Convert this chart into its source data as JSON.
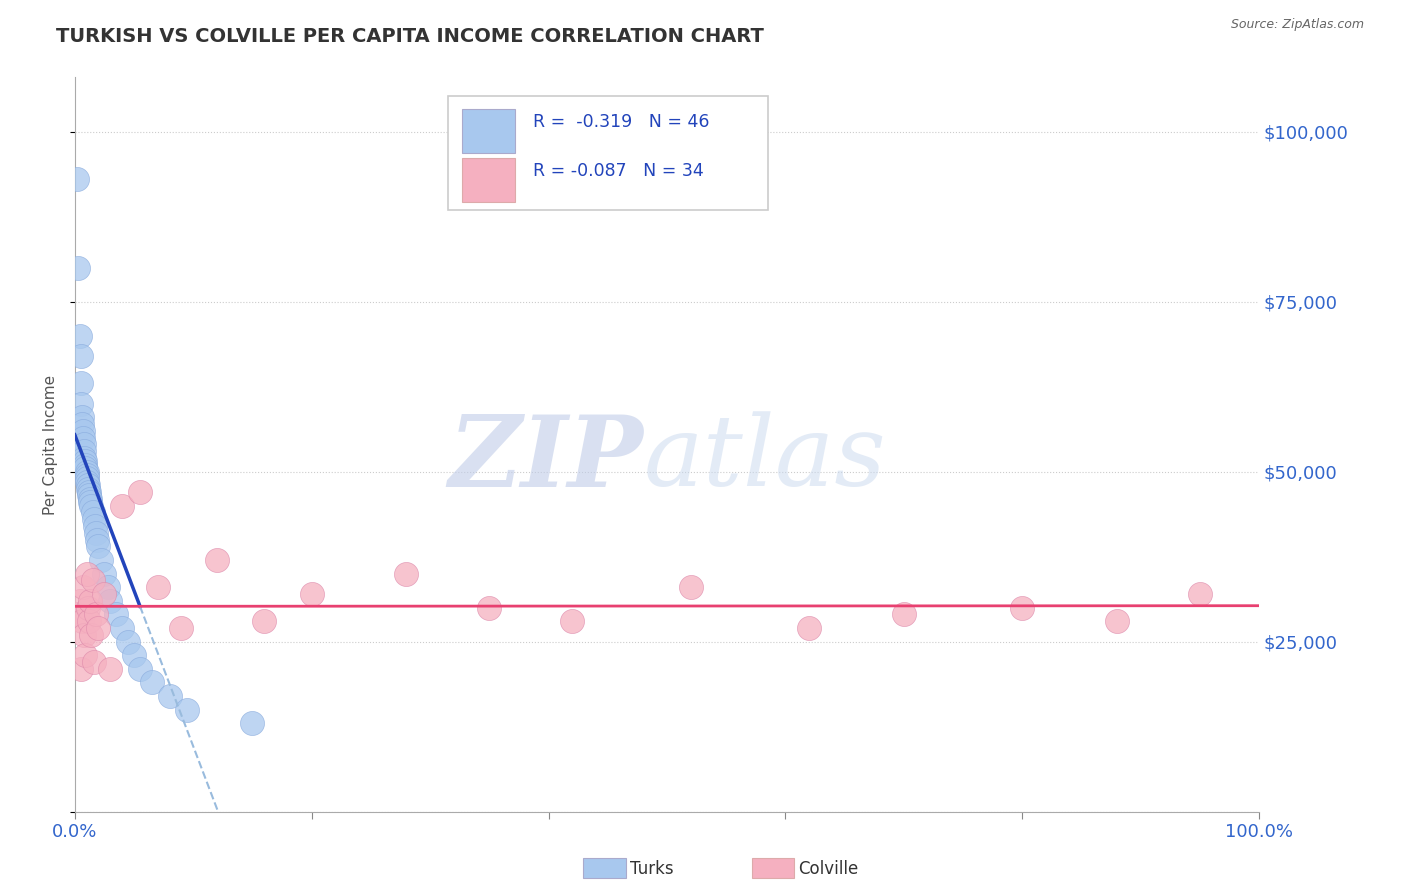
{
  "title": "TURKISH VS COLVILLE PER CAPITA INCOME CORRELATION CHART",
  "source": "Source: ZipAtlas.com",
  "ylabel": "Per Capita Income",
  "xlim": [
    0.0,
    1.0
  ],
  "ylim": [
    0,
    108000
  ],
  "yticks": [
    0,
    25000,
    50000,
    75000,
    100000
  ],
  "ytick_labels": [
    "",
    "$25,000",
    "$50,000",
    "$75,000",
    "$100,000"
  ],
  "legend_r_blue": "-0.319",
  "legend_n_blue": "46",
  "legend_r_pink": "-0.087",
  "legend_n_pink": "34",
  "blue_color": "#a8c8ee",
  "pink_color": "#f5b0c0",
  "blue_line_color": "#2244bb",
  "pink_line_color": "#e84070",
  "dashed_line_color": "#99bbdd",
  "watermark_zip_color": "#c0cce8",
  "watermark_atlas_color": "#c8d8ee",
  "turks_x": [
    0.002,
    0.003,
    0.004,
    0.005,
    0.005,
    0.005,
    0.006,
    0.006,
    0.007,
    0.007,
    0.008,
    0.008,
    0.008,
    0.009,
    0.009,
    0.009,
    0.01,
    0.01,
    0.01,
    0.01,
    0.011,
    0.011,
    0.012,
    0.012,
    0.013,
    0.013,
    0.014,
    0.015,
    0.016,
    0.017,
    0.018,
    0.019,
    0.02,
    0.022,
    0.025,
    0.028,
    0.03,
    0.035,
    0.04,
    0.045,
    0.05,
    0.055,
    0.065,
    0.08,
    0.095,
    0.15
  ],
  "turks_y": [
    93000,
    80000,
    70000,
    67000,
    63000,
    60000,
    58000,
    57000,
    56000,
    55000,
    54000,
    53000,
    52000,
    51500,
    51000,
    50500,
    50000,
    49500,
    49000,
    48500,
    48000,
    47500,
    47000,
    46500,
    46000,
    45500,
    45000,
    44000,
    43000,
    42000,
    41000,
    40000,
    39000,
    37000,
    35000,
    33000,
    31000,
    29000,
    27000,
    25000,
    23000,
    21000,
    19000,
    17000,
    15000,
    13000
  ],
  "colville_x": [
    0.002,
    0.004,
    0.005,
    0.006,
    0.007,
    0.008,
    0.009,
    0.01,
    0.011,
    0.012,
    0.013,
    0.014,
    0.015,
    0.016,
    0.018,
    0.02,
    0.025,
    0.03,
    0.04,
    0.055,
    0.07,
    0.09,
    0.12,
    0.16,
    0.2,
    0.28,
    0.35,
    0.42,
    0.52,
    0.62,
    0.7,
    0.8,
    0.88,
    0.95
  ],
  "colville_y": [
    29000,
    31000,
    21000,
    28000,
    33000,
    26000,
    23000,
    35000,
    30000,
    28000,
    31000,
    26000,
    34000,
    22000,
    29000,
    27000,
    32000,
    21000,
    45000,
    47000,
    33000,
    27000,
    37000,
    28000,
    32000,
    35000,
    30000,
    28000,
    33000,
    27000,
    29000,
    30000,
    28000,
    32000
  ]
}
